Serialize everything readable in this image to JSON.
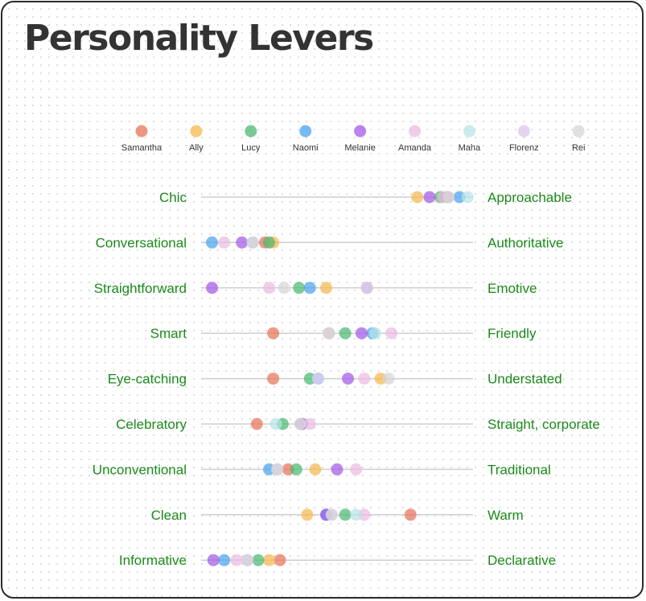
{
  "title": "Personality Levers",
  "colors": {
    "label": "#1b8a1b",
    "track": "#cfcfcf",
    "legend_text": "#333333"
  },
  "chart_data": {
    "type": "scatter",
    "title": "Personality Levers",
    "xlim": [
      0,
      100
    ],
    "legend_position": "top",
    "series": [
      {
        "name": "Samantha",
        "color": "#e8735a"
      },
      {
        "name": "Ally",
        "color": "#f5b94f"
      },
      {
        "name": "Lucy",
        "color": "#4cb872"
      },
      {
        "name": "Naomi",
        "color": "#4aa3ee"
      },
      {
        "name": "Melanie",
        "color": "#a45ae8"
      },
      {
        "name": "Amanda",
        "color": "#ecbbe0"
      },
      {
        "name": "Maha",
        "color": "#b8e4e6"
      },
      {
        "name": "Florenz",
        "color": "#ddc6ee"
      },
      {
        "name": "Rei",
        "color": "#d6d6d6"
      }
    ],
    "levers": [
      {
        "left": "Chic",
        "right": "Approachable",
        "values": {
          "Samantha": 90.5,
          "Ally": 79.5,
          "Lucy": 88,
          "Naomi": 95,
          "Melanie": 84,
          "Amanda": 89,
          "Maha": 98,
          "Florenz": 91,
          "Rei": 91
        }
      },
      {
        "left": "Conversational",
        "right": "Authoritative",
        "values": {
          "Samantha": 23.5,
          "Ally": 26.5,
          "Lucy": 25,
          "Naomi": 4,
          "Melanie": 15,
          "Amanda": 8.5,
          "Maha": 19,
          "Florenz": 19,
          "Rei": 19
        }
      },
      {
        "left": "Straightforward",
        "right": "Emotive",
        "values": {
          "Samantha": 61,
          "Ally": 46,
          "Lucy": 36,
          "Naomi": 40,
          "Melanie": 4,
          "Amanda": 25,
          "Maha": 61,
          "Florenz": 61,
          "Rei": 30.5
        }
      },
      {
        "left": "Smart",
        "right": "Friendly",
        "values": {
          "Samantha": 26.5,
          "Ally": 47,
          "Lucy": 53,
          "Naomi": 63,
          "Melanie": 59,
          "Amanda": 70,
          "Maha": 64,
          "Florenz": 47,
          "Rei": 47
        }
      },
      {
        "left": "Eye-catching",
        "right": "Understated",
        "values": {
          "Samantha": 26.5,
          "Ally": 66,
          "Lucy": 40,
          "Naomi": 43,
          "Melanie": 54,
          "Amanda": 60,
          "Maha": 43,
          "Florenz": 43,
          "Rei": 69
        }
      },
      {
        "left": "Celebratory",
        "right": "Straight, corporate",
        "values": {
          "Samantha": 20.5,
          "Ally": 36.5,
          "Lucy": 30,
          "Naomi": 37,
          "Melanie": 37,
          "Amanda": 40,
          "Maha": 27.5,
          "Florenz": 36.5,
          "Rei": 36.5
        }
      },
      {
        "left": "Unconventional",
        "right": "Traditional",
        "values": {
          "Samantha": 32,
          "Ally": 42,
          "Lucy": 35,
          "Naomi": 25,
          "Melanie": 50,
          "Amanda": 57,
          "Maha": 28,
          "Florenz": 28,
          "Rei": 28
        }
      },
      {
        "left": "Clean",
        "right": "Warm",
        "values": {
          "Samantha": 77,
          "Ally": 39,
          "Lucy": 53,
          "Naomi": 46,
          "Melanie": 46,
          "Amanda": 60,
          "Maha": 57,
          "Florenz": 48,
          "Rei": 48
        }
      },
      {
        "left": "Informative",
        "right": "Declarative",
        "values": {
          "Samantha": 29,
          "Ally": 25,
          "Lucy": 21,
          "Naomi": 8.5,
          "Melanie": 4.5,
          "Amanda": 13,
          "Maha": 17,
          "Florenz": 17,
          "Rei": 17
        }
      }
    ]
  }
}
